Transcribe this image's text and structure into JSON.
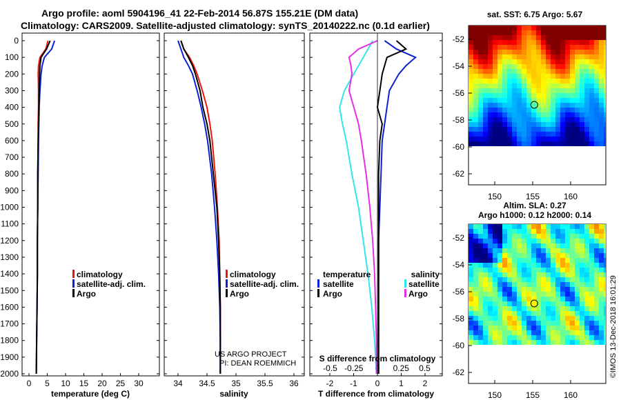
{
  "title": {
    "line1": "Argo profile: aoml 5904196_41 22-Feb-2014 56.87S 155.21E (DM data)",
    "line2": "Climatology: CARS2009. Satellite-adjusted climatology: synTS_20140222.nc (0.1d earlier)"
  },
  "colors": {
    "climatology": "#e8160c",
    "satellite": "#0a1fd6",
    "argo": "#000000",
    "temp_diff_satellite": "#33e6e6",
    "sal_diff_argo": "#e62ee6"
  },
  "depth_ticks": [
    "0",
    "100",
    "200",
    "300",
    "400",
    "500",
    "600",
    "700",
    "800",
    "900",
    "1000",
    "1100",
    "1200",
    "1300",
    "1400",
    "1500",
    "1600",
    "1700",
    "1800",
    "1900",
    "2000"
  ],
  "panel_temp": {
    "xlabel": "temperature (deg C)",
    "xticks": [
      "0",
      "5",
      "10",
      "15",
      "20",
      "25",
      "30"
    ],
    "legend": [
      "climatology",
      "satellite-adj. clim.",
      "Argo"
    ]
  },
  "panel_sal": {
    "xlabel": "salinity",
    "xticks": [
      "34",
      "34.5",
      "35",
      "35.5",
      "36"
    ],
    "legend": [
      "climatology",
      "satellite-adj. clim.",
      "Argo"
    ],
    "credit1": "US ARGO PROJECT",
    "credit2": "PI: DEAN ROEMMICH"
  },
  "panel_diff": {
    "xlabel": "T difference from climatology",
    "xticks": [
      "-2",
      "-1",
      "0",
      "1",
      "2"
    ],
    "top_xlabel": "S difference from climatology",
    "top_xticks": [
      "-0.5",
      "-0.25",
      "0",
      "0.25",
      "0.5"
    ],
    "legend_temp_title": "temperature",
    "legend_sal_title": "salinity",
    "legend_temp": [
      "satellite",
      "Argo"
    ],
    "legend_sal": [
      "satellite",
      "Argo"
    ]
  },
  "map_sst": {
    "title": "sat. SST: 6.75 Argo: 5.67",
    "yticks": [
      "-52",
      "-54",
      "-56",
      "-58",
      "-60",
      "-62"
    ],
    "xticks": [
      "150",
      "155",
      "160"
    ]
  },
  "map_sla": {
    "title1": "Altim. SLA: 0.27",
    "title2": "Argo h1000: 0.12 h2000: 0.14",
    "yticks": [
      "-52",
      "-54",
      "-56",
      "-58",
      "-60",
      "-62"
    ],
    "xticks": [
      "150",
      "155",
      "160"
    ]
  },
  "footer": "©IMOS 13-Dec-2018 16:01:29",
  "chart_data": {
    "type": "line",
    "ylabel": "",
    "ylim": [
      2050,
      -30
    ],
    "profiles": {
      "depth": [
        0,
        50,
        100,
        150,
        200,
        300,
        400,
        500,
        600,
        800,
        1000,
        1200,
        1400,
        1600,
        1800,
        2000
      ],
      "temperature": {
        "climatology": [
          5.2,
          4.6,
          3.0,
          2.6,
          2.5,
          2.6,
          2.6,
          2.5,
          2.5,
          2.4,
          2.4,
          2.3,
          2.3,
          2.2,
          2.1,
          2.0
        ],
        "satellite": [
          7.0,
          6.2,
          4.2,
          3.6,
          3.3,
          3.0,
          2.8,
          2.7,
          2.6,
          2.5,
          2.4,
          2.3,
          2.3,
          2.2,
          2.1,
          2.0
        ],
        "argo": [
          5.8,
          4.8,
          3.3,
          3.0,
          2.9,
          2.8,
          2.7,
          2.6,
          2.5,
          2.4,
          2.4,
          2.3,
          2.3,
          2.2,
          2.1,
          2.0
        ]
      },
      "salinity": {
        "climatology": [
          34.05,
          34.1,
          34.2,
          34.27,
          34.33,
          34.42,
          34.5,
          34.55,
          34.59,
          34.64,
          34.68,
          34.71,
          34.72,
          34.73,
          34.73,
          34.73
        ],
        "satellite": [
          34.0,
          34.05,
          34.1,
          34.18,
          34.25,
          34.33,
          34.4,
          34.46,
          34.51,
          34.58,
          34.63,
          34.67,
          34.7,
          34.72,
          34.73,
          34.73
        ],
        "argo": [
          34.05,
          34.1,
          34.18,
          34.25,
          34.3,
          34.38,
          34.43,
          34.5,
          34.55,
          34.61,
          34.67,
          34.7,
          34.72,
          34.73,
          34.73,
          34.73
        ]
      },
      "t_diff": {
        "satellite": [
          0.3,
          0.8,
          1.6,
          1.2,
          0.9,
          0.5,
          0.4,
          0.3,
          0.2,
          0.15,
          0.1,
          0.05,
          0.05,
          0.05,
          0.05,
          0.05
        ],
        "argo": [
          0.8,
          1.2,
          0.4,
          0.3,
          0.2,
          0.1,
          0.0,
          0.2,
          0.1,
          0.05,
          0.05,
          0.05,
          0.05,
          0.05,
          0.05,
          0.05
        ]
      },
      "s_diff": {
        "satellite": [
          -0.05,
          -0.1,
          -0.15,
          -0.2,
          -0.25,
          -0.35,
          -0.4,
          -0.37,
          -0.33,
          -0.27,
          -0.2,
          -0.15,
          -0.1,
          -0.06,
          -0.03,
          -0.01
        ],
        "argo": [
          0.0,
          -0.2,
          -0.3,
          -0.28,
          -0.27,
          -0.3,
          -0.25,
          -0.2,
          -0.17,
          -0.12,
          -0.08,
          -0.05,
          -0.03,
          -0.02,
          -0.01,
          -0.01
        ]
      }
    },
    "argo_position": {
      "lon": 155.21,
      "lat": -56.87
    }
  }
}
